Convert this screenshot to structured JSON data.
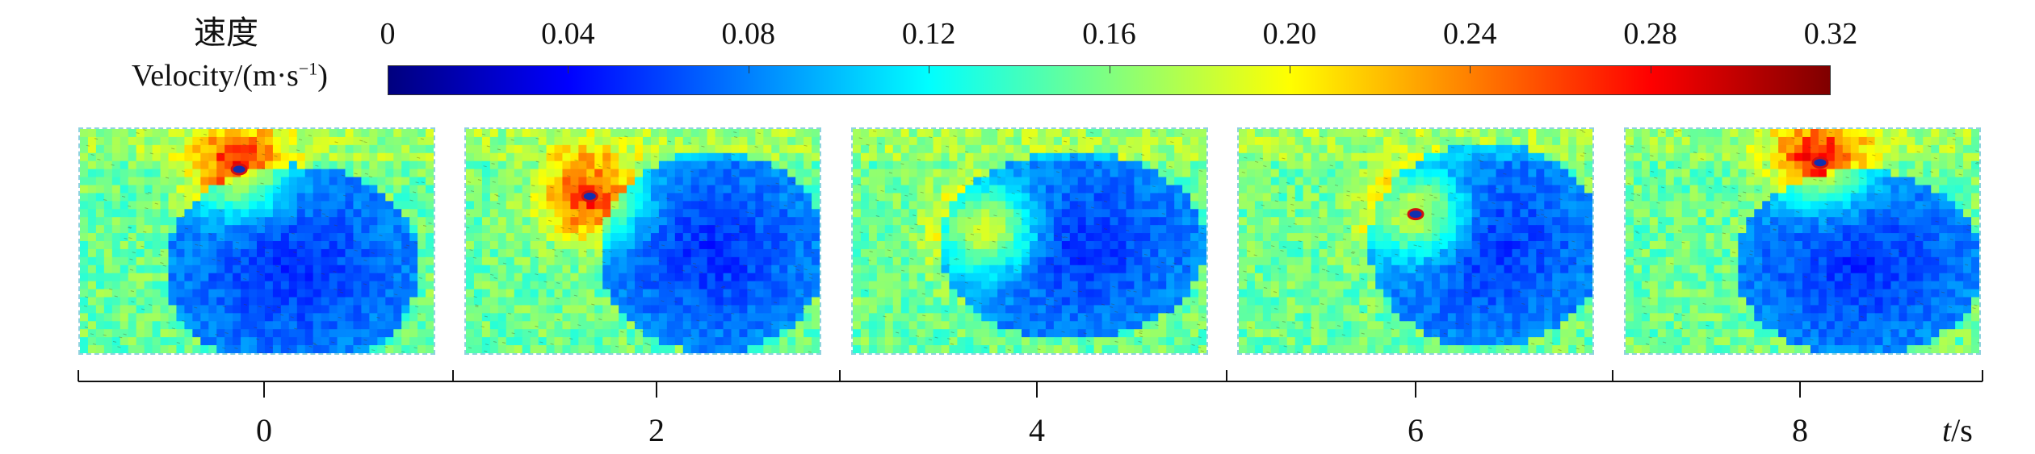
{
  "legend": {
    "label_cn": "速度",
    "label_en": "Velocity/(m·s",
    "label_en_exp": "−1",
    "label_en_close": ")"
  },
  "chart_data": {
    "type": "heatmap",
    "colorbar": {
      "min": 0,
      "max": 0.32,
      "ticks": [
        "0",
        "0.04",
        "0.08",
        "0.12",
        "0.16",
        "0.20",
        "0.24",
        "0.28",
        "0.32"
      ],
      "colormap": [
        "#00007f",
        "#0000ff",
        "#0080ff",
        "#00ffff",
        "#80ff80",
        "#ffff00",
        "#ff8000",
        "#ff0000",
        "#7f0000"
      ]
    },
    "time_axis": {
      "label_italic": "t",
      "unit": "/s",
      "tick_labels": [
        "0",
        "2",
        "4",
        "6",
        "8"
      ]
    },
    "panels": [
      {
        "t": 0,
        "low_speed_region": "center-right",
        "vortex": true
      },
      {
        "t": 2,
        "low_speed_region": "center-right",
        "vortex": true
      },
      {
        "t": 4,
        "low_speed_region": "center-right",
        "vortex": false
      },
      {
        "t": 6,
        "low_speed_region": "center-right",
        "vortex": true
      },
      {
        "t": 8,
        "low_speed_region": "center-right",
        "vortex": true
      }
    ]
  }
}
